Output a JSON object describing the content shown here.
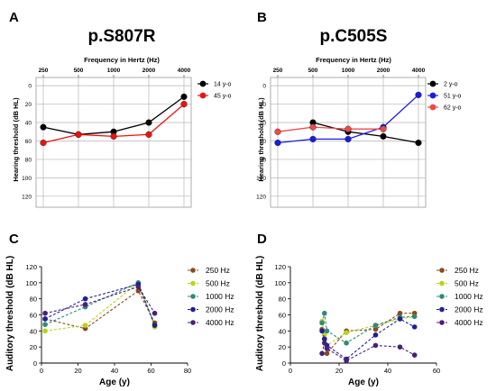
{
  "panels": [
    {
      "letter": "A",
      "type": "line",
      "title": "p.S807R",
      "xlabel": "Frequency in Hertz (Hz)",
      "ylabel": "Hearing threshold (dB HL)",
      "categories": [
        "250",
        "500",
        "1000",
        "2000",
        "4000"
      ],
      "yticks": [
        "0",
        "20",
        "40",
        "60",
        "80",
        "100",
        "120"
      ],
      "ylim": [
        -5,
        128
      ],
      "y_inverted": true,
      "grid": true,
      "legend_position": "top-right",
      "series": [
        {
          "name": "14 y-o",
          "color": "#000000",
          "values": [
            45,
            53,
            50,
            40,
            12
          ]
        },
        {
          "name": "45 y-o",
          "color": "#ee1111",
          "values": [
            62,
            53,
            55,
            53,
            20
          ]
        }
      ]
    },
    {
      "letter": "B",
      "type": "line",
      "title": "p.C505S",
      "xlabel": "Frequency in Hertz (Hz)",
      "ylabel": "Hearing threshold (dB HL)",
      "categories": [
        "250",
        "500",
        "1000",
        "2000",
        "4000"
      ],
      "yticks": [
        "0",
        "20",
        "40",
        "60",
        "80",
        "100",
        "120"
      ],
      "ylim": [
        -5,
        128
      ],
      "y_inverted": true,
      "grid": true,
      "legend_position": "top-right",
      "series": [
        {
          "name": "2 y-o",
          "color": "#000000",
          "values": [
            null,
            40,
            50,
            55,
            62
          ]
        },
        {
          "name": "51 y-o",
          "color": "#1a1ae6",
          "values": [
            62,
            58,
            58,
            45,
            10
          ]
        },
        {
          "name": "62 y-o",
          "color": "#f04848",
          "values": [
            50,
            45,
            47,
            47,
            null
          ]
        }
      ]
    },
    {
      "letter": "C",
      "type": "scatter",
      "xlabel": "Age (y)",
      "ylabel": "Auditory threshold  (dB HL)",
      "xticks": [
        0,
        20,
        40,
        60,
        80
      ],
      "yticks": [
        0,
        20,
        40,
        60,
        80,
        100,
        120
      ],
      "xlim": [
        0,
        80
      ],
      "ylim": [
        0,
        120
      ],
      "grid": false,
      "legend_position": "top-right",
      "series": [
        {
          "name": "250 Hz",
          "color": "#8b4a1c",
          "points": [
            [
              2,
              55
            ],
            [
              24,
              43
            ],
            [
              53,
              90
            ],
            [
              62,
              50
            ]
          ]
        },
        {
          "name": "500 Hz",
          "color": "#b8d41a",
          "points": [
            [
              2,
              40
            ],
            [
              24,
              47
            ],
            [
              53,
              100
            ],
            [
              62,
              45
            ]
          ]
        },
        {
          "name": "1000 Hz",
          "color": "#2f8a7a",
          "points": [
            [
              2,
              48
            ],
            [
              24,
              70
            ],
            [
              53,
              100
            ],
            [
              62,
              47
            ]
          ]
        },
        {
          "name": "2000 Hz",
          "color": "#1f1f99",
          "points": [
            [
              2,
              55
            ],
            [
              24,
              80
            ],
            [
              53,
              98
            ],
            [
              62,
              47
            ]
          ]
        },
        {
          "name": "4000 Hz",
          "color": "#4a1f7a",
          "points": [
            [
              2,
              62
            ],
            [
              24,
              73
            ],
            [
              53,
              95
            ],
            [
              62,
              62
            ]
          ]
        }
      ]
    },
    {
      "letter": "D",
      "type": "scatter",
      "xlabel": "Age (y)",
      "ylabel": "Auditory threshold  (dB HL)",
      "xticks": [
        0,
        20,
        40,
        60
      ],
      "yticks": [
        0,
        20,
        40,
        60,
        80,
        100,
        120
      ],
      "xlim": [
        0,
        60
      ],
      "ylim": [
        0,
        120
      ],
      "grid": false,
      "legend_position": "top-right",
      "series": [
        {
          "name": "250 Hz",
          "color": "#8b4a1c",
          "points": [
            [
              13,
              42
            ],
            [
              14,
              30
            ],
            [
              15,
              12
            ],
            [
              23,
              40
            ],
            [
              35,
              42
            ],
            [
              45,
              62
            ],
            [
              51,
              62
            ]
          ]
        },
        {
          "name": "500 Hz",
          "color": "#b8d41a",
          "points": [
            [
              13,
              52
            ],
            [
              14,
              35
            ],
            [
              15,
              22
            ],
            [
              23,
              38
            ],
            [
              35,
              47
            ],
            [
              45,
              55
            ],
            [
              51,
              58
            ]
          ]
        },
        {
          "name": "1000 Hz",
          "color": "#2f8a7a",
          "points": [
            [
              13,
              50
            ],
            [
              14,
              62
            ],
            [
              15,
              40
            ],
            [
              23,
              25
            ],
            [
              35,
              47
            ],
            [
              45,
              57
            ],
            [
              51,
              58
            ]
          ]
        },
        {
          "name": "2000 Hz",
          "color": "#1f1f99",
          "points": [
            [
              13,
              40
            ],
            [
              14,
              30
            ],
            [
              15,
              22
            ],
            [
              23,
              5
            ],
            [
              35,
              35
            ],
            [
              45,
              55
            ],
            [
              51,
              45
            ]
          ]
        },
        {
          "name": "4000 Hz",
          "color": "#4a1f7a",
          "points": [
            [
              13,
              12
            ],
            [
              14,
              25
            ],
            [
              15,
              18
            ],
            [
              23,
              3
            ],
            [
              35,
              22
            ],
            [
              45,
              20
            ],
            [
              51,
              10
            ]
          ]
        }
      ]
    }
  ]
}
